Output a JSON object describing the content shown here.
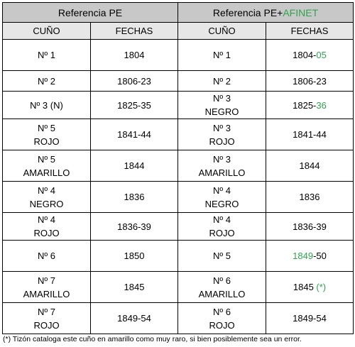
{
  "header": {
    "group_left": "Referencia PE",
    "group_right_prefix": "Referencia PE+",
    "group_right_highlight": "AFINET",
    "col_cuno": "CUÑO",
    "col_fechas": "FECHAS",
    "col_cuno_2": "CUÑO",
    "col_fechas_2": "FECHAS"
  },
  "rows": [
    {
      "pe_cuno_1": "Nº 1",
      "pe_cuno_2": "",
      "pe_fechas": "1804",
      "af_cuno_1": "Nº 1",
      "af_cuno_2": "",
      "af_fechas_a": "1804-",
      "af_fechas_b": "05",
      "af_fechas_c": ""
    },
    {
      "pe_cuno_1": "Nº 2",
      "pe_cuno_2": "",
      "pe_fechas": "1806-23",
      "af_cuno_1": "Nº 2",
      "af_cuno_2": "",
      "af_fechas_a": "1806-23",
      "af_fechas_b": "",
      "af_fechas_c": ""
    },
    {
      "pe_cuno_1": "Nº 3 (N)",
      "pe_cuno_2": "",
      "pe_fechas": "1825-35",
      "af_cuno_1": "Nº 3",
      "af_cuno_2": "NEGRO",
      "af_fechas_a": "1825-",
      "af_fechas_b": "36",
      "af_fechas_c": ""
    },
    {
      "pe_cuno_1": "Nº 5",
      "pe_cuno_2": "ROJO",
      "pe_fechas": "1841-44",
      "af_cuno_1": "Nº 3",
      "af_cuno_2": "ROJO",
      "af_fechas_a": "1841-44",
      "af_fechas_b": "",
      "af_fechas_c": ""
    },
    {
      "pe_cuno_1": "Nº 5",
      "pe_cuno_2": "AMARILLO",
      "pe_fechas": "1844",
      "af_cuno_1": "Nº 3",
      "af_cuno_2": "AMARILLO",
      "af_fechas_a": "1844",
      "af_fechas_b": "",
      "af_fechas_c": ""
    },
    {
      "pe_cuno_1": "Nº 4",
      "pe_cuno_2": "NEGRO",
      "pe_fechas": "1836",
      "af_cuno_1": "Nº 4",
      "af_cuno_2": "NEGRO",
      "af_fechas_a": "1836",
      "af_fechas_b": "",
      "af_fechas_c": ""
    },
    {
      "pe_cuno_1": "Nº 4",
      "pe_cuno_2": "ROJO",
      "pe_fechas": "1836-39",
      "af_cuno_1": "Nº 4",
      "af_cuno_2": "ROJO",
      "af_fechas_a": "1836-39",
      "af_fechas_b": "",
      "af_fechas_c": ""
    },
    {
      "pe_cuno_1": "Nº 6",
      "pe_cuno_2": "",
      "pe_fechas": "1850",
      "af_cuno_1": "Nº 5",
      "af_cuno_2": "",
      "af_fechas_a": "",
      "af_fechas_b": "1849",
      "af_fechas_c": "-50"
    },
    {
      "pe_cuno_1": "Nº 7",
      "pe_cuno_2": "AMARILLO",
      "pe_fechas": "1845",
      "af_cuno_1": "Nº 6",
      "af_cuno_2": "AMARILLO",
      "af_fechas_a": "1845 ",
      "af_fechas_b": "(*)",
      "af_fechas_c": ""
    },
    {
      "pe_cuno_1": "Nº 7",
      "pe_cuno_2": "ROJO",
      "pe_fechas": "1849-54",
      "af_cuno_1": "Nº 6",
      "af_cuno_2": "ROJO",
      "af_fechas_a": "1849-54",
      "af_fechas_b": "",
      "af_fechas_c": ""
    }
  ],
  "footnote": "(*) Tizón cataloga este cuño en amarillo como muy raro, si bien posiblemente sea un error.",
  "colors": {
    "header_dark": "#c8c8c8",
    "header_light": "#e7e7e7",
    "highlight_green": "#2ea44f"
  }
}
